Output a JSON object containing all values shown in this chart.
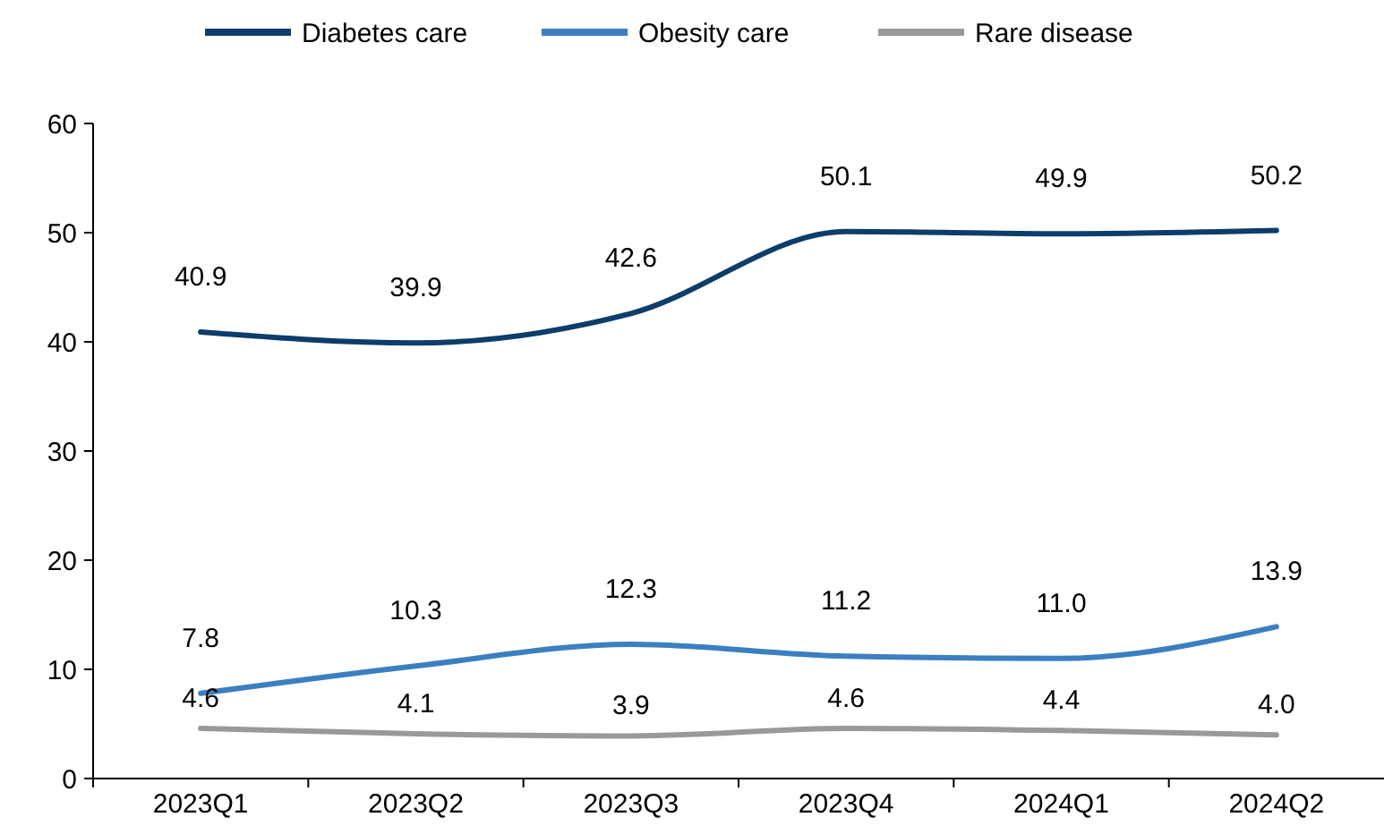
{
  "chart_data": {
    "type": "line",
    "categories": [
      "2023Q1",
      "2023Q2",
      "2023Q3",
      "2023Q4",
      "2024Q1",
      "2024Q2"
    ],
    "series": [
      {
        "name": "Diabetes care",
        "color": "#0d3d6b",
        "values": [
          40.9,
          39.9,
          42.6,
          50.1,
          49.9,
          50.2
        ],
        "value_labels": [
          "40.9",
          "39.9",
          "42.6",
          "50.1",
          "49.9",
          "50.2"
        ]
      },
      {
        "name": "Obesity care",
        "color": "#3b7fc1",
        "values": [
          7.8,
          10.3,
          12.3,
          11.2,
          11.0,
          13.9
        ],
        "value_labels": [
          "7.8",
          "10.3",
          "12.3",
          "11.2",
          "11.0",
          "13.9"
        ]
      },
      {
        "name": "Rare disease",
        "color": "#999999",
        "values": [
          4.6,
          4.1,
          3.9,
          4.6,
          4.4,
          4.0
        ],
        "value_labels": [
          "4.6",
          "4.1",
          "3.9",
          "4.6",
          "4.4",
          "4.0"
        ]
      }
    ],
    "ylim": [
      0,
      60
    ],
    "yticks": [
      0,
      10,
      20,
      30,
      40,
      50,
      60
    ],
    "grid": false,
    "legend": "top",
    "marker": "none",
    "line_style": "solid"
  }
}
